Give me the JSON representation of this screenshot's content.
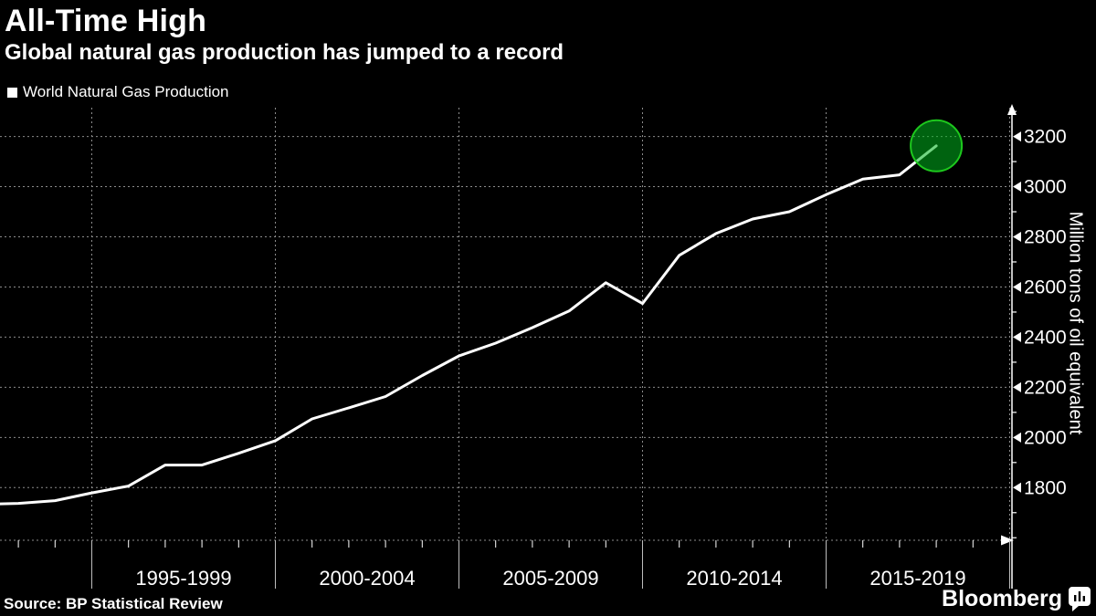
{
  "chart_data": {
    "type": "line",
    "title": "All-Time High",
    "subtitle": "Global natural gas production has jumped to a record",
    "ylabel": "Million tons of oil equivalent",
    "background": "#000000",
    "grid": {
      "show": true,
      "color": "#8c8c8c",
      "dash": "2 3"
    },
    "x_axis": {
      "group_boundaries": [
        1994,
        1999,
        2004,
        2009,
        2014,
        2019
      ],
      "group_labels": [
        "1995-1999",
        "2000-2004",
        "2005-2009",
        "2010-2014",
        "2015-2019"
      ],
      "year_ticks": [
        1992,
        1993,
        1995,
        1996,
        1997,
        1998,
        2000,
        2001,
        2002,
        2003,
        2005,
        2006,
        2007,
        2008,
        2010,
        2011,
        2012,
        2013,
        2015,
        2016,
        2017,
        2018
      ],
      "range_years": [
        1991.5,
        2019.1
      ]
    },
    "y_axis": {
      "ticks": [
        1800,
        2000,
        2200,
        2400,
        2600,
        2800,
        3000,
        3200
      ],
      "minor_step": 100,
      "range": [
        1590,
        3315
      ],
      "axis_color": "#ffffff"
    },
    "series": [
      {
        "name": "World Natural Gas Production",
        "color": "#ffffff",
        "x": [
          1991,
          1992,
          1993,
          1994,
          1995,
          1996,
          1997,
          1998,
          1999,
          2000,
          2001,
          2002,
          2003,
          2004,
          2005,
          2006,
          2007,
          2008,
          2009,
          2010,
          2011,
          2012,
          2013,
          2014,
          2015,
          2016,
          2017
        ],
        "values": [
          1733,
          1737,
          1748,
          1779,
          1806,
          1890,
          1890,
          1937,
          1987,
          2074,
          2118,
          2163,
          2247,
          2325,
          2376,
          2438,
          2504,
          2617,
          2534,
          2726,
          2813,
          2871,
          2900,
          2968,
          3030,
          3047,
          3163
        ]
      }
    ],
    "highlight": {
      "year": 2017,
      "value": 3163,
      "radius": 28,
      "fill": "#00b41e",
      "fill_opacity": 0.55,
      "stroke": "#1dc81d"
    }
  },
  "footer": {
    "source": "Source: BP Statistical Review",
    "brand": "Bloomberg"
  }
}
